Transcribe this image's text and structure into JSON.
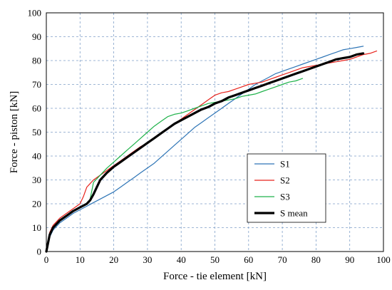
{
  "chart_data": {
    "type": "line",
    "xlabel": "Force - tie element [kN]",
    "ylabel": "Force - piston [kN]",
    "xlim": [
      0,
      100
    ],
    "ylim": [
      0,
      100
    ],
    "xticks": [
      0,
      10,
      20,
      30,
      40,
      50,
      60,
      70,
      80,
      90,
      100
    ],
    "yticks": [
      0,
      10,
      20,
      30,
      40,
      50,
      60,
      70,
      80,
      90,
      100
    ],
    "grid": "dashed",
    "legend_position": "lower-right",
    "series": [
      {
        "name": "S1",
        "color": "#2e75b6",
        "x": [
          0,
          1,
          2,
          4,
          6,
          8,
          10,
          12,
          14,
          16,
          18,
          20,
          22,
          24,
          26,
          28,
          30,
          32,
          34,
          36,
          38,
          40,
          42,
          44,
          46,
          48,
          50,
          52,
          54,
          56,
          58,
          60,
          62,
          64,
          66,
          68,
          70,
          72,
          74,
          76,
          78,
          80,
          82,
          84,
          86,
          88,
          90,
          92,
          94
        ],
        "y": [
          0,
          6,
          9,
          12,
          14,
          16,
          17.5,
          19,
          20.5,
          22,
          23.5,
          25,
          27,
          29,
          31,
          33,
          35,
          37,
          39.5,
          42,
          44.5,
          47,
          49.5,
          52,
          54,
          56,
          58,
          60,
          62,
          64,
          66,
          68,
          70,
          71.5,
          73,
          74.5,
          75.5,
          76.5,
          77.5,
          78.5,
          79.5,
          80.5,
          81.5,
          82.5,
          83.5,
          84.5,
          85,
          85.5,
          86
        ]
      },
      {
        "name": "S2",
        "color": "#e8231c",
        "x": [
          0,
          1,
          2,
          4,
          6,
          8,
          10,
          11,
          12,
          14,
          16,
          18,
          20,
          22,
          24,
          26,
          28,
          30,
          32,
          34,
          36,
          38,
          40,
          42,
          44,
          46,
          48,
          50,
          52,
          54,
          56,
          58,
          60,
          62,
          64,
          66,
          68,
          70,
          72,
          74,
          76,
          78,
          80,
          82,
          84,
          86,
          88,
          90,
          92,
          94,
          96,
          98
        ],
        "y": [
          0,
          8,
          11,
          14,
          16,
          18,
          20,
          23,
          27,
          30,
          32,
          34,
          36,
          38,
          40,
          42,
          44,
          45.5,
          47.5,
          49.5,
          51.5,
          53.5,
          55.5,
          57.5,
          59.5,
          61.5,
          63.5,
          65.5,
          66.5,
          67,
          68,
          69,
          70,
          70.5,
          71,
          72,
          73,
          74,
          75,
          76,
          77,
          77.5,
          78,
          78.5,
          79,
          79.5,
          80,
          80.5,
          81.5,
          82.5,
          83,
          84
        ]
      },
      {
        "name": "S3",
        "color": "#1fb24a",
        "x": [
          0,
          1,
          2,
          4,
          6,
          8,
          10,
          12,
          13,
          14,
          16,
          18,
          20,
          22,
          24,
          26,
          28,
          30,
          32,
          34,
          36,
          38,
          40,
          42,
          44,
          46,
          48,
          50,
          52,
          54,
          56,
          58,
          60,
          62,
          64,
          66,
          68,
          70,
          72,
          74,
          76
        ],
        "y": [
          0,
          7,
          10,
          13,
          15,
          17,
          18.5,
          20,
          22,
          29,
          32,
          35,
          37.5,
          40,
          42.5,
          45,
          47.5,
          50,
          52.5,
          54.5,
          56.5,
          57.5,
          58,
          59,
          60,
          61,
          62,
          62.5,
          63,
          63.5,
          64,
          65,
          65.5,
          66,
          67,
          68,
          69,
          70,
          71,
          71.5,
          72.5
        ]
      },
      {
        "name": "S mean",
        "color": "#000000",
        "x": [
          0,
          1,
          2,
          4,
          6,
          8,
          10,
          12,
          13,
          14,
          15,
          16,
          18,
          20,
          22,
          24,
          26,
          28,
          30,
          32,
          34,
          36,
          38,
          40,
          42,
          44,
          46,
          48,
          50,
          52,
          54,
          56,
          58,
          60,
          62,
          64,
          66,
          68,
          70,
          72,
          74,
          76,
          78,
          80,
          82,
          84,
          86,
          88,
          90,
          92,
          94
        ],
        "y": [
          0,
          7,
          10,
          13,
          15,
          17,
          18.5,
          20,
          21.5,
          24,
          27,
          30,
          33,
          35.5,
          37.5,
          39.5,
          41.5,
          43.5,
          45.5,
          47.5,
          49.5,
          51.5,
          53.5,
          55,
          56.5,
          58,
          59.5,
          60.5,
          62,
          63,
          64.5,
          65.5,
          66.5,
          67.5,
          68.5,
          69.5,
          70.5,
          71.5,
          72.5,
          73.5,
          74.5,
          75.5,
          76.5,
          77.5,
          78.5,
          79.5,
          80.5,
          81,
          81.5,
          82.5,
          83
        ]
      }
    ]
  }
}
